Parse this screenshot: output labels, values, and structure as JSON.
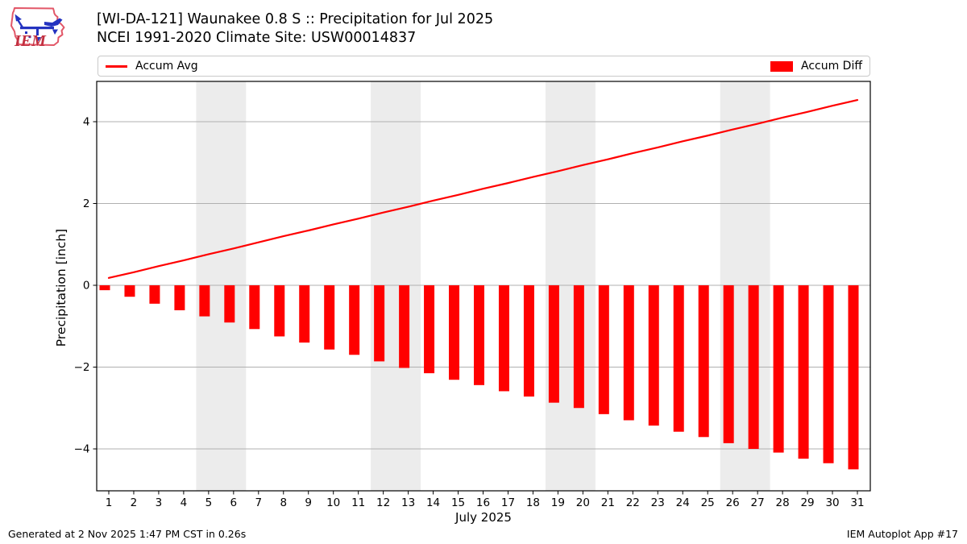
{
  "header": {
    "logo_text": "IEM",
    "title_line1": "[WI-DA-121] Waunakee 0.8 S :: Precipitation for Jul 2025",
    "title_line2": "NCEI 1991-2020 Climate Site: USW00014837"
  },
  "legend": {
    "avg_label": "Accum Avg",
    "diff_label": "Accum Diff"
  },
  "chart_data": {
    "type": "combo",
    "title": "[WI-DA-121] Waunakee 0.8 S :: Precipitation for Jul 2025",
    "subtitle": "NCEI 1991-2020 Climate Site: USW00014837",
    "xlabel": "July 2025",
    "ylabel": "Precipitation [inch]",
    "x": [
      1,
      2,
      3,
      4,
      5,
      6,
      7,
      8,
      9,
      10,
      11,
      12,
      13,
      14,
      15,
      16,
      17,
      18,
      19,
      20,
      21,
      22,
      23,
      24,
      25,
      26,
      27,
      28,
      29,
      30,
      31
    ],
    "series": [
      {
        "name": "Accum Avg",
        "type": "line",
        "color": "#ff0000",
        "values": [
          0.18,
          0.32,
          0.47,
          0.61,
          0.76,
          0.9,
          1.05,
          1.2,
          1.34,
          1.49,
          1.63,
          1.78,
          1.92,
          2.07,
          2.21,
          2.36,
          2.5,
          2.65,
          2.79,
          2.94,
          3.08,
          3.23,
          3.37,
          3.52,
          3.66,
          3.81,
          3.95,
          4.1,
          4.24,
          4.39,
          4.53
        ]
      },
      {
        "name": "Accum Diff",
        "type": "bar",
        "color": "#ff0000",
        "values": [
          -0.12,
          -0.28,
          -0.45,
          -0.61,
          -0.76,
          -0.91,
          -1.07,
          -1.25,
          -1.4,
          -1.57,
          -1.7,
          -1.86,
          -2.02,
          -2.15,
          -2.31,
          -2.44,
          -2.59,
          -2.72,
          -2.87,
          -3.0,
          -3.15,
          -3.3,
          -3.43,
          -3.58,
          -3.71,
          -3.86,
          -4.0,
          -4.09,
          -4.24,
          -4.35,
          -4.5
        ]
      }
    ],
    "ylim": [
      -5.05,
      5.0
    ],
    "yticks": [
      4,
      2,
      0,
      -2,
      -4
    ],
    "grid": true,
    "legend_position": "top",
    "weekend_shading": {
      "color": "#ececec",
      "bands": [
        [
          5,
          6
        ],
        [
          12,
          13
        ],
        [
          19,
          20
        ],
        [
          26,
          27
        ]
      ]
    },
    "colors": {
      "grid": "#b0b0b0",
      "axis": "#000000",
      "band": "#ececec",
      "accent": "#ff0000"
    }
  },
  "footer": {
    "generated": "Generated at 2 Nov 2025 1:47 PM CST in 0.26s",
    "app": "IEM Autoplot App #17"
  }
}
